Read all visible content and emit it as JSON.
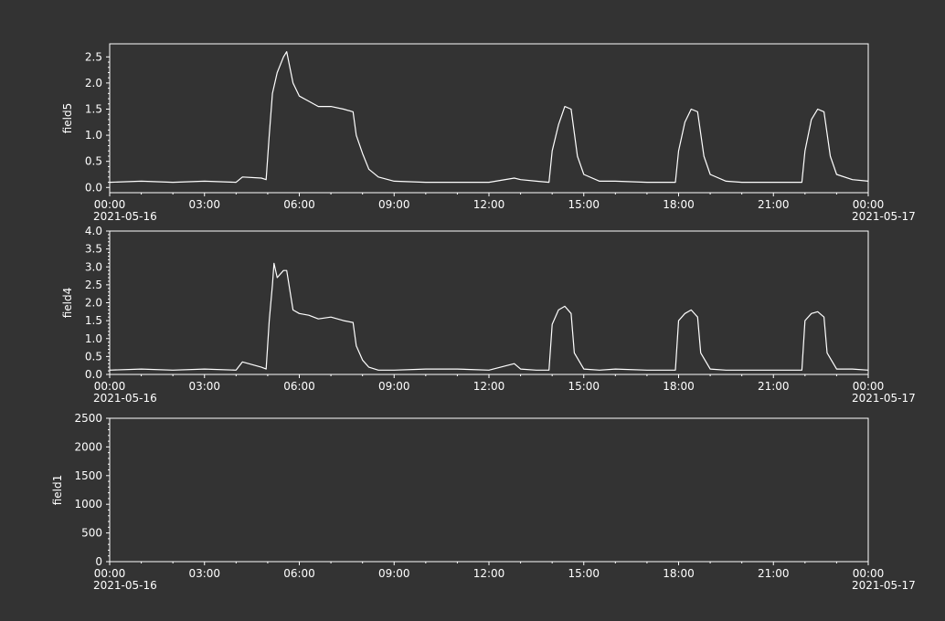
{
  "colors": {
    "background": "#333333",
    "axes": "#ffffff",
    "series": "#ffffff"
  },
  "chart_data": [
    {
      "type": "line",
      "ylabel": "field5",
      "ylim": [
        -0.1,
        2.75
      ],
      "yticks": [
        0.0,
        0.5,
        1.0,
        1.5,
        2.0,
        2.5
      ],
      "ytick_labels": [
        "0.0",
        "0.5",
        "1.0",
        "1.5",
        "2.0",
        "2.5"
      ],
      "xlim": [
        0,
        24
      ],
      "xticks": [
        0,
        3,
        6,
        9,
        12,
        15,
        18,
        21,
        24
      ],
      "xtick_labels": [
        "00:00",
        "03:00",
        "06:00",
        "09:00",
        "12:00",
        "15:00",
        "18:00",
        "21:00",
        "00:00"
      ],
      "date_labels": [
        "2021-05-16",
        "2021-05-17"
      ],
      "grid": false,
      "series": [
        {
          "x": [
            0,
            1,
            2,
            3,
            4,
            4.2,
            4.8,
            4.95,
            5.05,
            5.15,
            5.3,
            5.5,
            5.6,
            5.8,
            6.0,
            6.3,
            6.6,
            7.0,
            7.4,
            7.7,
            7.8,
            8.0,
            8.2,
            8.5,
            9.0,
            10,
            11,
            12,
            12.8,
            13.0,
            13.5,
            13.9,
            14.0,
            14.2,
            14.4,
            14.6,
            14.8,
            15.0,
            15.5,
            16,
            17,
            17.9,
            18.0,
            18.2,
            18.4,
            18.6,
            18.8,
            19.0,
            19.5,
            20,
            21,
            21.9,
            22.0,
            22.2,
            22.4,
            22.6,
            22.8,
            23.0,
            23.5,
            24
          ],
          "y": [
            0.1,
            0.12,
            0.1,
            0.12,
            0.1,
            0.2,
            0.18,
            0.15,
            1.0,
            1.8,
            2.2,
            2.5,
            2.6,
            2.0,
            1.75,
            1.65,
            1.55,
            1.55,
            1.5,
            1.45,
            1.0,
            0.65,
            0.35,
            0.2,
            0.12,
            0.1,
            0.1,
            0.1,
            0.18,
            0.15,
            0.12,
            0.1,
            0.7,
            1.2,
            1.55,
            1.5,
            0.6,
            0.25,
            0.12,
            0.12,
            0.1,
            0.1,
            0.7,
            1.25,
            1.5,
            1.45,
            0.6,
            0.25,
            0.12,
            0.1,
            0.1,
            0.1,
            0.7,
            1.3,
            1.5,
            1.45,
            0.6,
            0.25,
            0.15,
            0.12
          ]
        }
      ]
    },
    {
      "type": "line",
      "ylabel": "field4",
      "ylim": [
        0.0,
        4.0
      ],
      "yticks": [
        0.0,
        0.5,
        1.0,
        1.5,
        2.0,
        2.5,
        3.0,
        3.5,
        4.0
      ],
      "ytick_labels": [
        "0.0",
        "0.5",
        "1.0",
        "1.5",
        "2.0",
        "2.5",
        "3.0",
        "3.5",
        "4.0"
      ],
      "xlim": [
        0,
        24
      ],
      "xticks": [
        0,
        3,
        6,
        9,
        12,
        15,
        18,
        21,
        24
      ],
      "xtick_labels": [
        "00:00",
        "03:00",
        "06:00",
        "09:00",
        "12:00",
        "15:00",
        "18:00",
        "21:00",
        "00:00"
      ],
      "date_labels": [
        "2021-05-16",
        "2021-05-17"
      ],
      "grid": false,
      "series": [
        {
          "x": [
            0,
            1,
            2,
            3,
            4,
            4.2,
            4.8,
            4.95,
            5.05,
            5.15,
            5.2,
            5.3,
            5.5,
            5.6,
            5.8,
            6.0,
            6.3,
            6.6,
            7.0,
            7.4,
            7.7,
            7.8,
            8.0,
            8.2,
            8.5,
            9.0,
            10,
            11,
            12,
            12.8,
            13.0,
            13.5,
            13.9,
            14.0,
            14.2,
            14.4,
            14.6,
            14.7,
            15.0,
            15.5,
            16,
            17,
            17.9,
            18.0,
            18.2,
            18.4,
            18.6,
            18.7,
            19.0,
            19.5,
            20,
            21,
            21.9,
            22.0,
            22.2,
            22.4,
            22.6,
            22.7,
            23.0,
            23.5,
            24
          ],
          "y": [
            0.12,
            0.15,
            0.12,
            0.15,
            0.12,
            0.35,
            0.2,
            0.15,
            1.5,
            2.5,
            3.1,
            2.7,
            2.9,
            2.9,
            1.8,
            1.7,
            1.65,
            1.55,
            1.6,
            1.5,
            1.45,
            0.8,
            0.4,
            0.2,
            0.12,
            0.12,
            0.15,
            0.15,
            0.12,
            0.3,
            0.15,
            0.12,
            0.12,
            1.4,
            1.8,
            1.9,
            1.7,
            0.6,
            0.15,
            0.12,
            0.15,
            0.12,
            0.12,
            1.5,
            1.7,
            1.8,
            1.6,
            0.6,
            0.15,
            0.12,
            0.12,
            0.12,
            0.12,
            1.5,
            1.7,
            1.75,
            1.6,
            0.6,
            0.15,
            0.15,
            0.12
          ]
        }
      ]
    },
    {
      "type": "line",
      "ylabel": "field1",
      "ylim": [
        0,
        2500
      ],
      "yticks": [
        0,
        500,
        1000,
        1500,
        2000,
        2500
      ],
      "ytick_labels": [
        "0",
        "500",
        "1000",
        "1500",
        "2000",
        "2500"
      ],
      "xlim": [
        0,
        24
      ],
      "xticks": [
        0,
        3,
        6,
        9,
        12,
        15,
        18,
        21,
        24
      ],
      "xtick_labels": [
        "00:00",
        "03:00",
        "06:00",
        "09:00",
        "12:00",
        "15:00",
        "18:00",
        "21:00",
        "00:00"
      ],
      "date_labels": [
        "2021-05-16",
        "2021-05-17"
      ],
      "grid": false,
      "series": []
    }
  ]
}
